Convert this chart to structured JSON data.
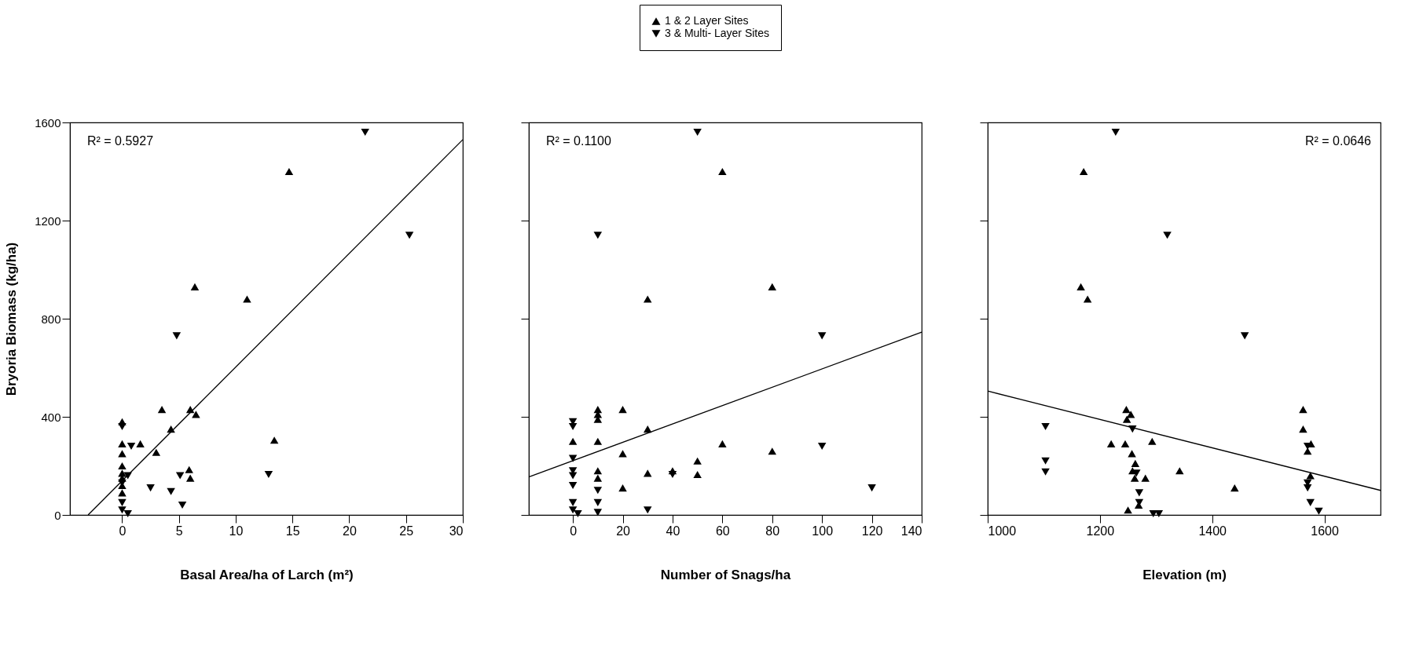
{
  "chart_data": [
    {
      "type": "scatter",
      "xlabel": "Basal Area/ha of Larch (m²)",
      "ylabel": "Bryoria Biomass (kg/ha)",
      "xlim": [
        -4.6,
        30
      ],
      "xticks": [
        0,
        5,
        10,
        15,
        20,
        25,
        30
      ],
      "ylim": [
        0,
        1600
      ],
      "yticks": [
        0,
        400,
        800,
        1200,
        1600
      ],
      "grid": false,
      "legend": "top",
      "annotations": [
        "R² = 0.5927"
      ],
      "series": [
        {
          "name": "1 & 2 Layer Sites",
          "color": "#000000",
          "marker": "triangle",
          "x": [
            14.7,
            6.4,
            11,
            3.5,
            6,
            6.5,
            4.3,
            13.4,
            1.6,
            0,
            3,
            5.9,
            6,
            0,
            0,
            0,
            0,
            0,
            0,
            0
          ],
          "values": [
            1400,
            930,
            880,
            430,
            430,
            410,
            350,
            305,
            290,
            290,
            255,
            185,
            150,
            380,
            250,
            200,
            170,
            150,
            120,
            90
          ]
        },
        {
          "name": "3 & Multi- Layer Sites",
          "color": "#000000",
          "marker": "triangle-down",
          "x": [
            21.4,
            25.3,
            4.8,
            12.9,
            2.5,
            4.3,
            5.1,
            5.3,
            0.8,
            0.5,
            0,
            0,
            0,
            0,
            0.5
          ],
          "values": [
            1560,
            1140,
            730,
            165,
            110,
            95,
            160,
            40,
            280,
            160,
            360,
            130,
            50,
            20,
            5
          ]
        },
        {
          "type": "line",
          "color": "#000000",
          "x": [
            -3,
            30
          ],
          "values": [
            0,
            1530
          ]
        }
      ]
    },
    {
      "type": "scatter",
      "xlabel": "Number of Snags/ha",
      "xlim": [
        -17.7,
        140
      ],
      "xticks": [
        0,
        20,
        40,
        60,
        80,
        100,
        120,
        140
      ],
      "ylim": [
        0,
        1600
      ],
      "yticks": [
        0,
        400,
        800,
        1200,
        1600
      ],
      "tick_labels": "x",
      "grid": false,
      "legend": "top",
      "annotations": [
        "R² = 0.1100"
      ],
      "series": [
        {
          "name": "1 & 2 Layer Sites",
          "color": "#000000",
          "marker": "triangle",
          "x": [
            60,
            30,
            80,
            10,
            10,
            10,
            20,
            30,
            0,
            10,
            60,
            80,
            20,
            50,
            10,
            10,
            30,
            40,
            50,
            20
          ],
          "values": [
            1400,
            880,
            930,
            430,
            410,
            390,
            430,
            350,
            300,
            300,
            290,
            260,
            250,
            220,
            180,
            150,
            170,
            180,
            165,
            110
          ]
        },
        {
          "name": "3 & Multi- Layer Sites",
          "color": "#000000",
          "marker": "triangle-down",
          "x": [
            50,
            10,
            100,
            100,
            120,
            0,
            0,
            0,
            0,
            0,
            0,
            0,
            0,
            2,
            10,
            10,
            10,
            30,
            40
          ],
          "values": [
            1560,
            1140,
            730,
            280,
            110,
            380,
            360,
            230,
            180,
            160,
            120,
            50,
            20,
            5,
            100,
            50,
            10,
            20,
            165
          ]
        },
        {
          "type": "line",
          "color": "#000000",
          "x": [
            -17.7,
            140
          ],
          "values": [
            155,
            745
          ]
        }
      ]
    },
    {
      "type": "scatter",
      "xlabel": "Elevation (m)",
      "xlim": [
        1000,
        1700
      ],
      "xticks": [
        1000,
        1200,
        1400,
        1600
      ],
      "ylim": [
        0,
        1600
      ],
      "yticks": [
        0,
        400,
        800,
        1200,
        1600
      ],
      "tick_labels": "x",
      "grid": false,
      "legend": "top",
      "annotations": [
        "R² = 0.0646"
      ],
      "series": [
        {
          "name": "1 & 2 Layer Sites",
          "color": "#000000",
          "marker": "triangle",
          "x": [
            1171,
            1166,
            1178,
            1247,
            1255,
            1248,
            1220,
            1245,
            1293,
            1257,
            1263,
            1258,
            1262,
            1281,
            1342,
            1440,
            1250,
            1269,
            1562,
            1562,
            1576,
            1570,
            1575
          ],
          "values": [
            1400,
            930,
            880,
            430,
            410,
            390,
            290,
            290,
            300,
            250,
            210,
            180,
            150,
            150,
            180,
            110,
            20,
            40,
            430,
            350,
            290,
            260,
            160
          ]
        },
        {
          "name": "3 & Multi- Layer Sites",
          "color": "#000000",
          "marker": "triangle-down",
          "x": [
            1228,
            1320,
            1458,
            1103,
            1103,
            1103,
            1258,
            1265,
            1270,
            1270,
            1295,
            1305,
            1570,
            1570,
            1570,
            1575,
            1590
          ],
          "values": [
            1560,
            1140,
            730,
            360,
            220,
            175,
            350,
            170,
            90,
            50,
            5,
            5,
            280,
            130,
            110,
            50,
            15
          ]
        },
        {
          "type": "line",
          "color": "#000000",
          "x": [
            1000,
            1700
          ],
          "values": [
            505,
            100
          ]
        }
      ]
    }
  ]
}
